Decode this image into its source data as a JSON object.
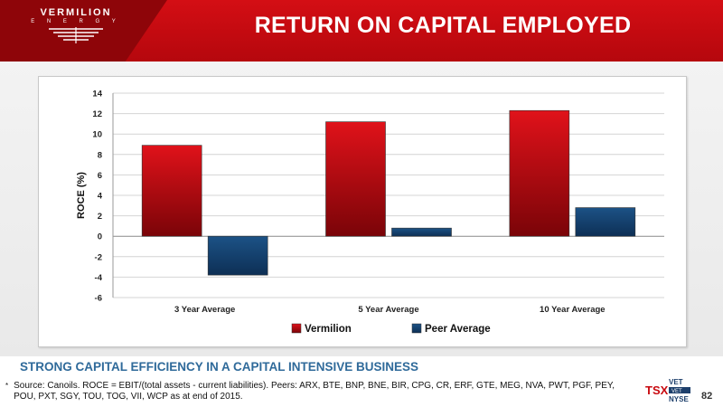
{
  "header": {
    "logo_word": "VERMILION",
    "logo_sub": "E N E R G Y",
    "title": "RETURN ON CAPITAL EMPLOYED"
  },
  "colors": {
    "brand_red": "#c8090f",
    "vermilion_series": "#c00d12",
    "peer_series": "#123f6e",
    "subtitle_blue": "#2f6a9a"
  },
  "chart_data": {
    "type": "bar",
    "categories": [
      "3 Year Average",
      "5 Year Average",
      "10 Year Average"
    ],
    "series": [
      {
        "name": "Vermilion",
        "values": [
          8.9,
          11.2,
          12.3
        ],
        "color": "#c00d12"
      },
      {
        "name": "Peer Average",
        "values": [
          -3.8,
          0.8,
          2.8
        ],
        "color": "#123f6e"
      }
    ],
    "ylabel": "ROCE (%)",
    "ylim": [
      -6,
      14
    ],
    "yticks": [
      -6,
      -4,
      -2,
      0,
      2,
      4,
      6,
      8,
      10,
      12,
      14
    ],
    "grid": true,
    "legend_position": "bottom"
  },
  "footer": {
    "subtitle": "STRONG CAPITAL EFFICIENCY IN A CAPITAL INTENSIVE BUSINESS",
    "footnote_marker": "*",
    "footnote": "Source: Canoils. ROCE = EBIT/(total assets - current liabilities). Peers: ARX, BTE, BNP, BNE, BIR, CPG, CR, ERF, GTE, MEG, NVA, PWT, PGF, PEY, POU, PXT, SGY, TOU, TOG, VII, WCP as at end of 2015.",
    "ticker_top": "VET",
    "ticker_exchange_1": "TSX",
    "ticker_bottom": "VET",
    "ticker_exchange_2": "NYSE",
    "page_number": "82"
  }
}
